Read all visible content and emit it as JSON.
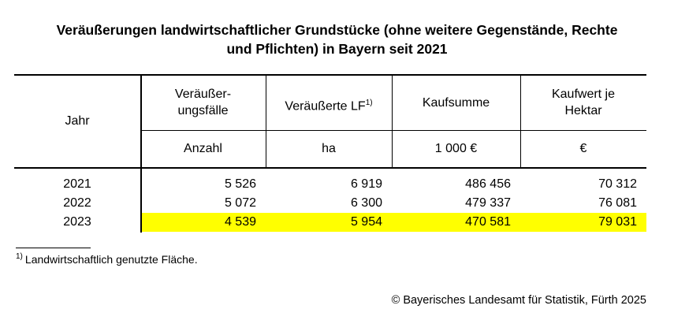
{
  "title": [
    "Veräußerungen landwirtschaftlicher Grundstücke (ohne weitere Gegenstände, Rechte",
    "und Pflichten) in Bayern seit 2021"
  ],
  "table": {
    "header": {
      "first": "Jahr",
      "columns": [
        {
          "label": [
            "Veräußer-",
            "ungsfälle"
          ],
          "unit": "Anzahl"
        },
        {
          "label": [
            "Veräußerte LF"
          ],
          "note_ref": "1)",
          "unit": "ha"
        },
        {
          "label": [
            "Kaufsumme"
          ],
          "unit": "1 000 €"
        },
        {
          "label": [
            "Kaufwert je",
            "Hektar"
          ],
          "unit": "€"
        }
      ]
    },
    "rows": [
      [
        "2021",
        "5 526",
        "6 919",
        "486 456",
        "70 312"
      ],
      [
        "2022",
        "5 072",
        "6 300",
        "479 337",
        "76 081"
      ],
      [
        "2023",
        "4 539",
        "5 954",
        "470 581",
        "79 031"
      ]
    ],
    "highlight": {
      "row": 2,
      "color": "#ffff00"
    }
  },
  "footnote": {
    "ref": "1)",
    "text": "Landwirtschaftlich genutzte Fläche."
  },
  "source": "© Bayerisches Landesamt für Statistik, Fürth 2025"
}
